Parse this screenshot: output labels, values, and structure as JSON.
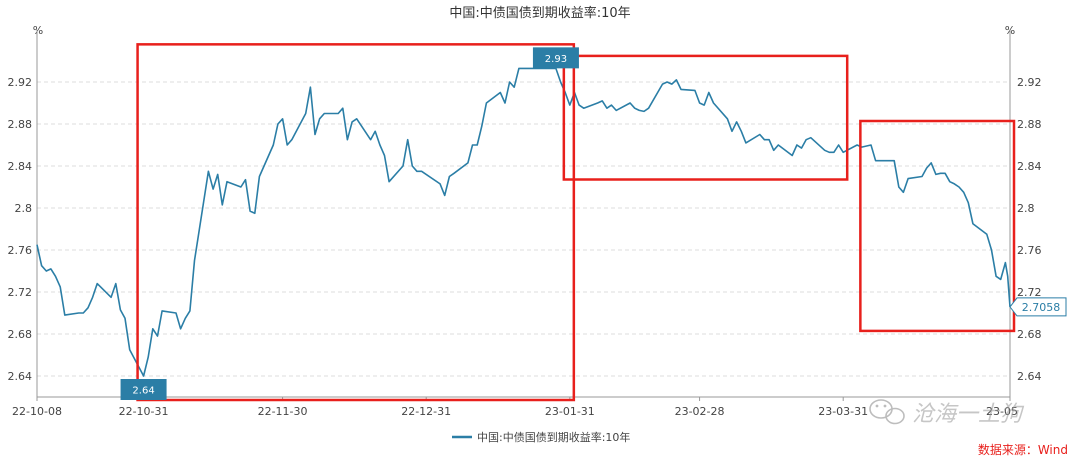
{
  "chart_data": {
    "type": "line",
    "title": "中国:中债国债到期收益率:10年",
    "y_unit": "%",
    "ylim": [
      2.62,
      2.96
    ],
    "y_ticks": [
      "2.64",
      "2.68",
      "2.72",
      "2.76",
      "2.8",
      "2.84",
      "2.88",
      "2.92"
    ],
    "x_range": [
      "2022-10-08",
      "2023-05-06"
    ],
    "x_tick_labels": [
      "22-10-08",
      "22-10-31",
      "22-11-30",
      "22-12-31",
      "23-01-31",
      "23-02-28",
      "23-03-31",
      "23-05"
    ],
    "x_tick_dates": [
      "2022-10-08",
      "2022-10-31",
      "2022-11-30",
      "2022-12-31",
      "2023-01-31",
      "2023-02-28",
      "2023-03-31",
      "2023-05-06"
    ],
    "grid": "horizontal dashed",
    "legend_position": "bottom-center",
    "series": [
      {
        "name": "中国:中债国债到期收益率:10年",
        "color": "#2b7ea6",
        "points": [
          [
            "2022-10-08",
            2.765
          ],
          [
            "2022-10-09",
            2.745
          ],
          [
            "2022-10-10",
            2.74
          ],
          [
            "2022-10-11",
            2.742
          ],
          [
            "2022-10-12",
            2.735
          ],
          [
            "2022-10-13",
            2.725
          ],
          [
            "2022-10-14",
            2.698
          ],
          [
            "2022-10-17",
            2.7
          ],
          [
            "2022-10-18",
            2.7
          ],
          [
            "2022-10-19",
            2.705
          ],
          [
            "2022-10-20",
            2.715
          ],
          [
            "2022-10-21",
            2.728
          ],
          [
            "2022-10-24",
            2.715
          ],
          [
            "2022-10-25",
            2.728
          ],
          [
            "2022-10-26",
            2.703
          ],
          [
            "2022-10-27",
            2.695
          ],
          [
            "2022-10-28",
            2.665
          ],
          [
            "2022-10-31",
            2.64
          ],
          [
            "2022-11-01",
            2.658
          ],
          [
            "2022-11-02",
            2.685
          ],
          [
            "2022-11-03",
            2.678
          ],
          [
            "2022-11-04",
            2.702
          ],
          [
            "2022-11-07",
            2.7
          ],
          [
            "2022-11-08",
            2.685
          ],
          [
            "2022-11-09",
            2.695
          ],
          [
            "2022-11-10",
            2.702
          ],
          [
            "2022-11-11",
            2.75
          ],
          [
            "2022-11-14",
            2.835
          ],
          [
            "2022-11-15",
            2.818
          ],
          [
            "2022-11-16",
            2.832
          ],
          [
            "2022-11-17",
            2.803
          ],
          [
            "2022-11-18",
            2.825
          ],
          [
            "2022-11-21",
            2.82
          ],
          [
            "2022-11-22",
            2.827
          ],
          [
            "2022-11-23",
            2.797
          ],
          [
            "2022-11-24",
            2.795
          ],
          [
            "2022-11-25",
            2.83
          ],
          [
            "2022-11-28",
            2.86
          ],
          [
            "2022-11-29",
            2.88
          ],
          [
            "2022-11-30",
            2.885
          ],
          [
            "2022-12-01",
            2.86
          ],
          [
            "2022-12-02",
            2.865
          ],
          [
            "2022-12-05",
            2.89
          ],
          [
            "2022-12-06",
            2.915
          ],
          [
            "2022-12-07",
            2.87
          ],
          [
            "2022-12-08",
            2.885
          ],
          [
            "2022-12-09",
            2.89
          ],
          [
            "2022-12-12",
            2.89
          ],
          [
            "2022-12-13",
            2.895
          ],
          [
            "2022-12-14",
            2.865
          ],
          [
            "2022-12-15",
            2.882
          ],
          [
            "2022-12-16",
            2.885
          ],
          [
            "2022-12-19",
            2.865
          ],
          [
            "2022-12-20",
            2.873
          ],
          [
            "2022-12-21",
            2.86
          ],
          [
            "2022-12-22",
            2.85
          ],
          [
            "2022-12-23",
            2.825
          ],
          [
            "2022-12-26",
            2.84
          ],
          [
            "2022-12-27",
            2.865
          ],
          [
            "2022-12-28",
            2.84
          ],
          [
            "2022-12-29",
            2.835
          ],
          [
            "2022-12-30",
            2.835
          ],
          [
            "2023-01-03",
            2.823
          ],
          [
            "2023-01-04",
            2.812
          ],
          [
            "2023-01-05",
            2.83
          ],
          [
            "2023-01-06",
            2.833
          ],
          [
            "2023-01-09",
            2.843
          ],
          [
            "2023-01-10",
            2.86
          ],
          [
            "2023-01-11",
            2.86
          ],
          [
            "2023-01-12",
            2.878
          ],
          [
            "2023-01-13",
            2.9
          ],
          [
            "2023-01-16",
            2.91
          ],
          [
            "2023-01-17",
            2.9
          ],
          [
            "2023-01-18",
            2.92
          ],
          [
            "2023-01-19",
            2.915
          ],
          [
            "2023-01-20",
            2.933
          ],
          [
            "2023-01-28",
            2.933
          ],
          [
            "2023-01-29",
            2.92
          ],
          [
            "2023-01-30",
            2.91
          ],
          [
            "2023-01-31",
            2.898
          ],
          [
            "2023-02-01",
            2.91
          ],
          [
            "2023-02-02",
            2.898
          ],
          [
            "2023-02-03",
            2.895
          ],
          [
            "2023-02-06",
            2.9
          ],
          [
            "2023-02-07",
            2.902
          ],
          [
            "2023-02-08",
            2.895
          ],
          [
            "2023-02-09",
            2.898
          ],
          [
            "2023-02-10",
            2.893
          ],
          [
            "2023-02-13",
            2.9
          ],
          [
            "2023-02-14",
            2.895
          ],
          [
            "2023-02-15",
            2.893
          ],
          [
            "2023-02-16",
            2.892
          ],
          [
            "2023-02-17",
            2.895
          ],
          [
            "2023-02-20",
            2.918
          ],
          [
            "2023-02-21",
            2.92
          ],
          [
            "2023-02-22",
            2.918
          ],
          [
            "2023-02-23",
            2.922
          ],
          [
            "2023-02-24",
            2.913
          ],
          [
            "2023-02-27",
            2.912
          ],
          [
            "2023-02-28",
            2.9
          ],
          [
            "2023-03-01",
            2.898
          ],
          [
            "2023-03-02",
            2.91
          ],
          [
            "2023-03-03",
            2.9
          ],
          [
            "2023-03-06",
            2.885
          ],
          [
            "2023-03-07",
            2.873
          ],
          [
            "2023-03-08",
            2.882
          ],
          [
            "2023-03-09",
            2.873
          ],
          [
            "2023-03-10",
            2.862
          ],
          [
            "2023-03-13",
            2.87
          ],
          [
            "2023-03-14",
            2.865
          ],
          [
            "2023-03-15",
            2.865
          ],
          [
            "2023-03-16",
            2.855
          ],
          [
            "2023-03-17",
            2.86
          ],
          [
            "2023-03-20",
            2.85
          ],
          [
            "2023-03-21",
            2.86
          ],
          [
            "2023-03-22",
            2.857
          ],
          [
            "2023-03-23",
            2.865
          ],
          [
            "2023-03-24",
            2.867
          ],
          [
            "2023-03-27",
            2.855
          ],
          [
            "2023-03-28",
            2.853
          ],
          [
            "2023-03-29",
            2.853
          ],
          [
            "2023-03-30",
            2.86
          ],
          [
            "2023-03-31",
            2.853
          ],
          [
            "2023-04-03",
            2.86
          ],
          [
            "2023-04-04",
            2.858
          ],
          [
            "2023-04-06",
            2.86
          ],
          [
            "2023-04-07",
            2.845
          ],
          [
            "2023-04-10",
            2.845
          ],
          [
            "2023-04-11",
            2.845
          ],
          [
            "2023-04-12",
            2.82
          ],
          [
            "2023-04-13",
            2.815
          ],
          [
            "2023-04-14",
            2.828
          ],
          [
            "2023-04-17",
            2.83
          ],
          [
            "2023-04-18",
            2.838
          ],
          [
            "2023-04-19",
            2.843
          ],
          [
            "2023-04-20",
            2.832
          ],
          [
            "2023-04-21",
            2.833
          ],
          [
            "2023-04-22",
            2.833
          ],
          [
            "2023-04-23",
            2.825
          ],
          [
            "2023-04-24",
            2.823
          ],
          [
            "2023-04-25",
            2.82
          ],
          [
            "2023-04-26",
            2.815
          ],
          [
            "2023-04-27",
            2.805
          ],
          [
            "2023-04-28",
            2.785
          ],
          [
            "2023-05-01",
            2.775
          ],
          [
            "2023-05-02",
            2.76
          ],
          [
            "2023-05-03",
            2.735
          ],
          [
            "2023-05-04",
            2.732
          ],
          [
            "2023-05-05",
            2.748
          ],
          [
            "2023-05-05T12",
            2.735
          ],
          [
            "2023-05-06",
            2.7058
          ]
        ]
      }
    ],
    "point_annotations": [
      {
        "date": "2022-10-31",
        "label": "2.64"
      },
      {
        "date": "2023-01-28",
        "label": "2.93"
      }
    ],
    "end_label": "2.7058",
    "highlight_boxes": [
      {
        "from": "2022-10-31",
        "to": "2023-01-31"
      },
      {
        "from": "2023-01-31",
        "to": "2023-03-31"
      },
      {
        "from": "2023-04-05",
        "to": "2023-05-06"
      }
    ]
  },
  "legend_label": "中国:中债国债到期收益率:10年",
  "source_label": "数据来源：Wind",
  "watermark_text": "沧海一土狗",
  "colors": {
    "line": "#2b7ea6",
    "highlight": "#e8201c",
    "annotation_bg": "#2b7ea6",
    "grid": "#dcdcdc"
  }
}
